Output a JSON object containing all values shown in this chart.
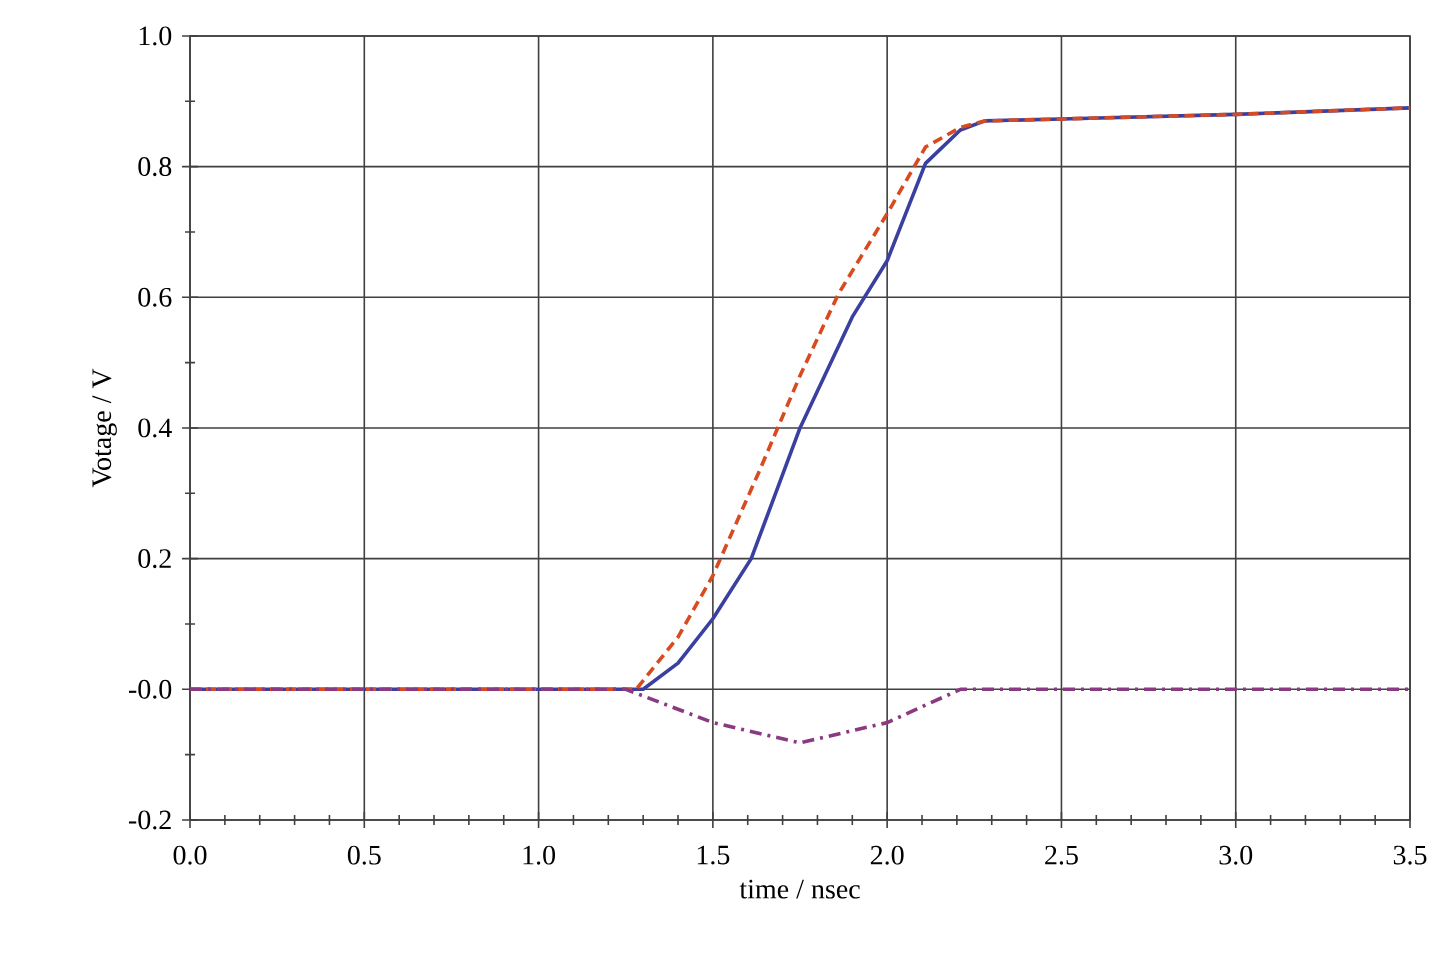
{
  "chart_data": {
    "type": "line",
    "xlabel": "time / nsec",
    "ylabel": "Votage / V",
    "xlim": [
      0,
      3.5
    ],
    "ylim": [
      -0.2,
      1.0
    ],
    "xticks": [
      {
        "value": 0,
        "label": "0.0"
      },
      0.5,
      {
        "value": 1,
        "label": "1.0"
      },
      1.5,
      {
        "value": 2,
        "label": "2.0"
      },
      2.5,
      {
        "value": 3,
        "label": "3.0"
      },
      3.5
    ],
    "yticks": [
      -0.2,
      {
        "value": 0,
        "label": "-0.0"
      },
      0.2,
      0.4,
      0.6,
      0.8,
      {
        "value": 1,
        "label": "1.0"
      }
    ],
    "grid": true,
    "marker": "none",
    "series": [
      {
        "color": "#3a40a0",
        "line_style": "solid",
        "x": [
          0,
          1.3,
          1.4,
          1.5,
          1.61,
          1.75,
          1.9,
          2.0,
          2.11,
          2.21,
          2.28,
          2.5,
          3.0,
          3.5
        ],
        "values": [
          0,
          0,
          0.04,
          0.108,
          0.2,
          0.4,
          0.57,
          0.656,
          0.805,
          0.856,
          0.87,
          0.873,
          0.88,
          0.89
        ]
      },
      {
        "color": "#d84a20",
        "line_style": "dashed",
        "x": [
          0,
          1.28,
          1.4,
          1.5,
          1.63,
          1.75,
          1.86,
          2.0,
          2.11,
          2.21,
          2.28,
          2.5,
          3.0,
          3.5
        ],
        "values": [
          0,
          0,
          0.08,
          0.174,
          0.33,
          0.48,
          0.605,
          0.728,
          0.83,
          0.86,
          0.87,
          0.873,
          0.88,
          0.89
        ]
      },
      {
        "color": "#8a3a80",
        "line_style": "dashdot",
        "x": [
          0,
          1.25,
          1.5,
          1.75,
          2.0,
          2.21,
          3.5
        ],
        "values": [
          0,
          0,
          -0.051,
          -0.082,
          -0.051,
          0,
          0
        ]
      }
    ]
  }
}
